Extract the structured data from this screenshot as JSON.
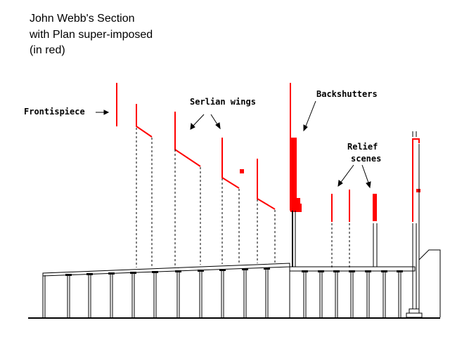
{
  "title": {
    "line1": "John Webb's Section",
    "line2": "with Plan super-imposed",
    "line3": "(in red)"
  },
  "labels": {
    "frontispiece": "Frontispiece",
    "serlian_wings": "Serlian wings",
    "backshutters": "Backshutters",
    "relief_line1": "Relief",
    "relief_line2": "scenes"
  },
  "colors": {
    "plan": "#ff0000",
    "section": "#000000"
  }
}
